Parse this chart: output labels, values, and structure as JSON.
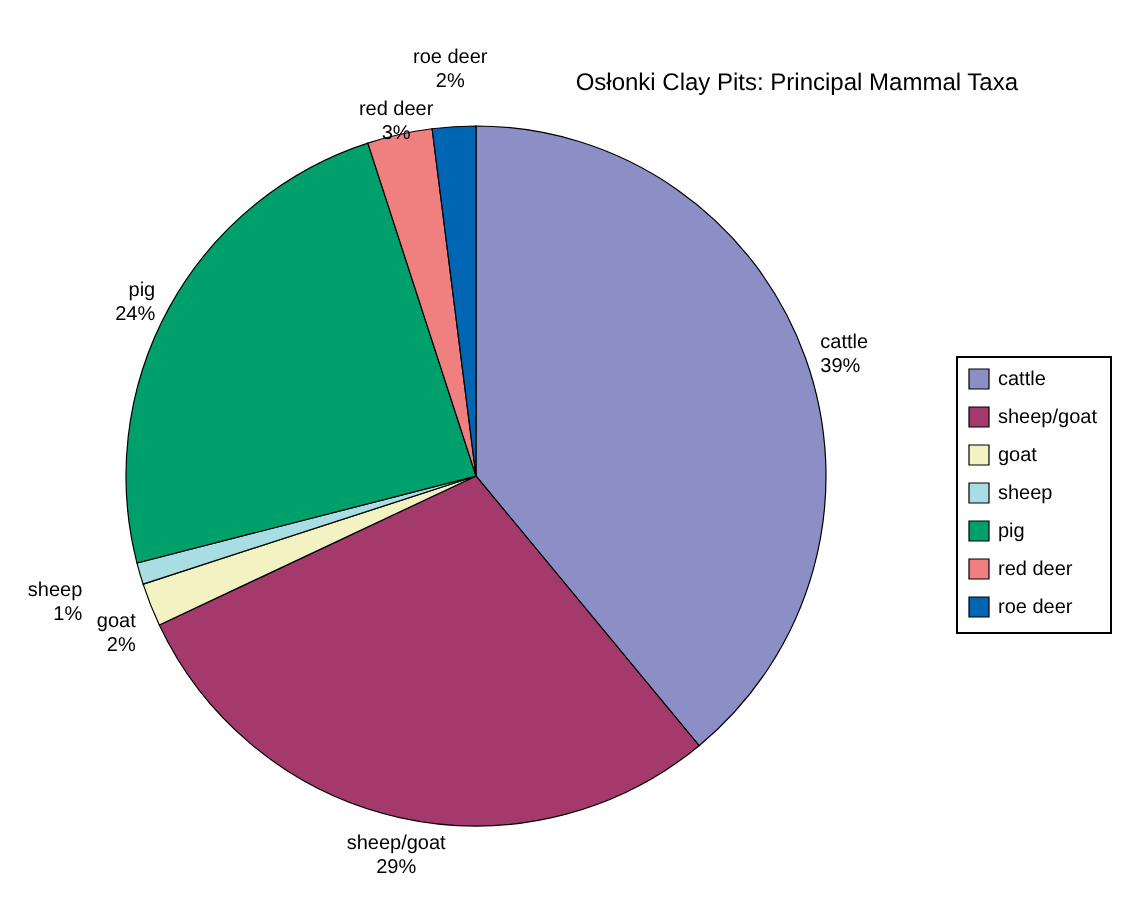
{
  "chart_data": {
    "type": "pie",
    "title": "Osłonki Clay Pits: Principal Mammal Taxa",
    "categories": [
      "cattle",
      "sheep/goat",
      "goat",
      "sheep",
      "pig",
      "red deer",
      "roe deer"
    ],
    "values": [
      39,
      29,
      2,
      1,
      24,
      3,
      2
    ],
    "colors": [
      "#8b8fc6",
      "#a33a6b",
      "#f2f2c2",
      "#a8dde4",
      "#00a06c",
      "#f07f80",
      "#0066b3"
    ],
    "value_labels": [
      "39%",
      "29%",
      "2%",
      "1%",
      "24%",
      "3%",
      "2%"
    ],
    "legend": "right"
  }
}
